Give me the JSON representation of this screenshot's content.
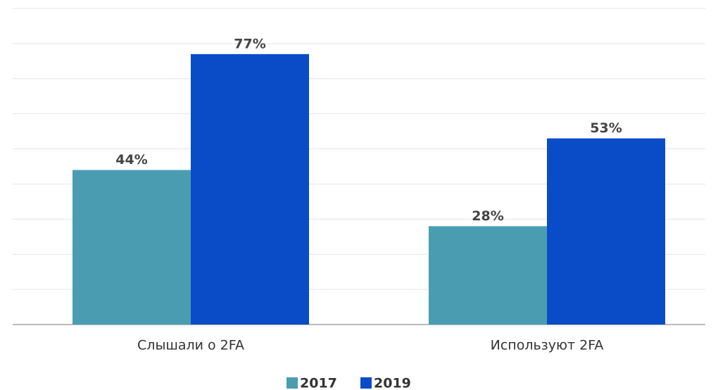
{
  "chart_data": {
    "type": "bar",
    "categories": [
      "Слышали о 2FA",
      "Используют 2FA"
    ],
    "series": [
      {
        "name": "2017",
        "color": "#4a9db0",
        "values": [
          44,
          28
        ],
        "value_labels": [
          "44%",
          "28%"
        ]
      },
      {
        "name": "2019",
        "color": "#0a4bc8",
        "values": [
          77,
          53
        ],
        "value_labels": [
          "77%",
          "53%"
        ]
      }
    ],
    "ylim": [
      0,
      90
    ],
    "yticks": [
      0,
      10,
      20,
      30,
      40,
      50,
      60,
      70,
      80,
      90
    ],
    "grid": true,
    "legend": "bottom"
  }
}
